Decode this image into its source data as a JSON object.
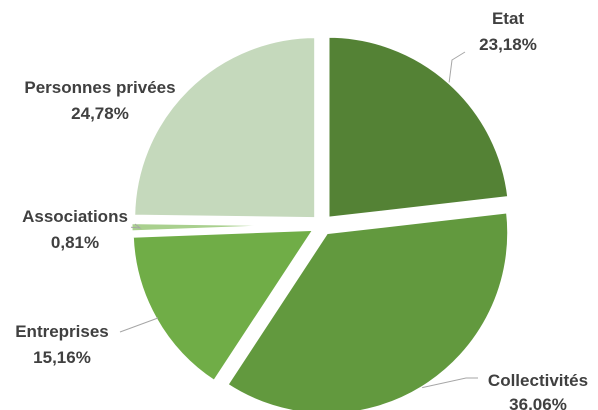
{
  "chart_data": {
    "type": "pie",
    "slices": [
      {
        "label": "Etat",
        "value": 23.18,
        "value_label": "23,18%",
        "color": "#548235"
      },
      {
        "label": "Collectivités",
        "value": 36.06,
        "value_label": "36,06%",
        "color": "#62993e"
      },
      {
        "label": "Entreprises",
        "value": 15.16,
        "value_label": "15,16%",
        "color": "#70ad47"
      },
      {
        "label": "Associations",
        "value": 0.81,
        "value_label": "0,81%",
        "color": "#a9d08e"
      },
      {
        "label": "Personnes privées",
        "value": 24.78,
        "value_label": "24,78%",
        "color": "#c5d9bc"
      }
    ],
    "legend": "none",
    "start": "top",
    "direction": "clockwise",
    "exploded": true
  }
}
